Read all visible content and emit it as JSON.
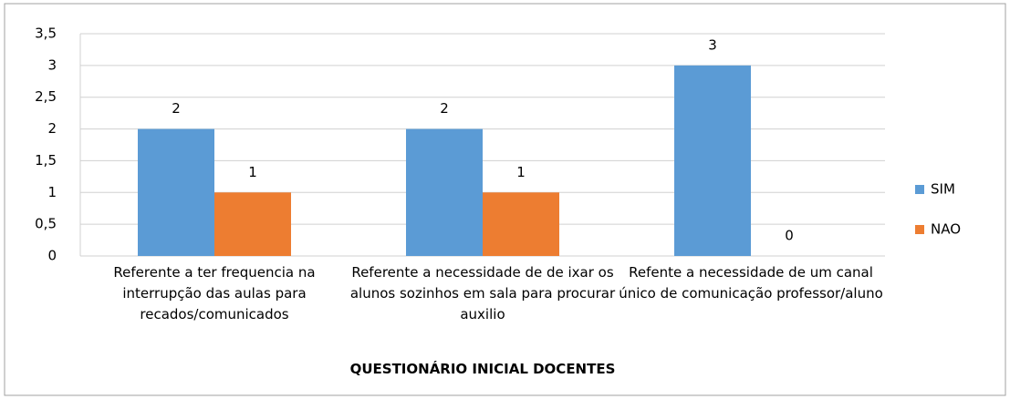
{
  "chart_data": {
    "type": "bar",
    "x_label": "QUESTIONÁRIO  INICIAL DOCENTES",
    "categories": [
      "Referente a ter frequencia na interrupção  das aulas para recados/comunicados",
      "Referente a necessidade de de ixar os alunos sozinhos em sala para procurar auxilio",
      "Refente a  necessidade de um canal único de comunicação professor/aluno"
    ],
    "series": [
      {
        "name": "SIM",
        "color": "#5b9bd5",
        "values": [
          2,
          2,
          3
        ]
      },
      {
        "name": "NAO",
        "color": "#ed7d31",
        "values": [
          1,
          1,
          0
        ]
      }
    ],
    "ylim": [
      0,
      3.5
    ],
    "yticks": [
      0,
      {
        "value": 0.5,
        "label": "0,5"
      },
      1,
      {
        "value": 1.5,
        "label": "1,5"
      },
      2,
      {
        "value": 2.5,
        "label": "2,5"
      },
      3,
      {
        "value": 3.5,
        "label": "3,5"
      }
    ],
    "grid": true,
    "legend": "right"
  }
}
